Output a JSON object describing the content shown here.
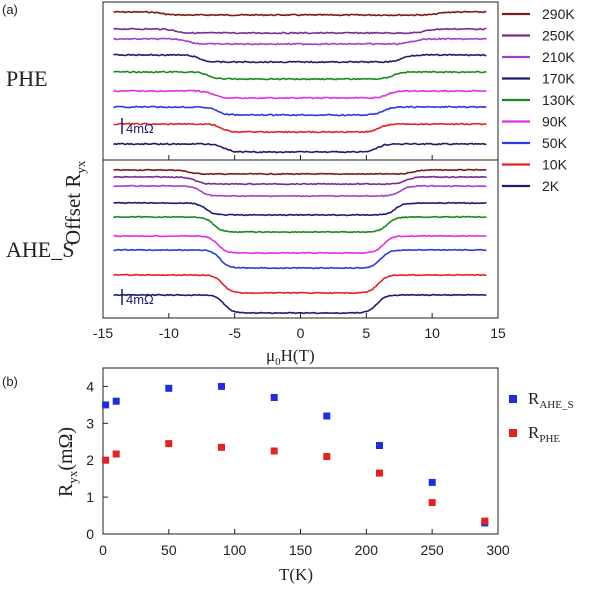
{
  "panel_labels": {
    "a": "(a)",
    "b": "(b)"
  },
  "chart_data": [
    {
      "type": "line",
      "panel": "(a)",
      "xlabel": "μ0H(T)",
      "ylabel": "Offset Ryx",
      "xlim": [
        -15,
        15
      ],
      "xticks": [
        -15,
        -10,
        -5,
        0,
        5,
        10,
        15
      ],
      "sublabels": {
        "top": "PHE",
        "bottom": "AHE_S"
      },
      "scale_bar": "4mΩ",
      "legend": [
        {
          "name": "290K",
          "color": "#7b1a1a"
        },
        {
          "name": "250K",
          "color": "#7a2b90"
        },
        {
          "name": "210K",
          "color": "#a240d0"
        },
        {
          "name": "170K",
          "color": "#1c1c70"
        },
        {
          "name": "130K",
          "color": "#1a8a1a"
        },
        {
          "name": "90K",
          "color": "#e22fe2"
        },
        {
          "name": "50K",
          "color": "#2a3ae0"
        },
        {
          "name": "10K",
          "color": "#e52222"
        },
        {
          "name": "2K",
          "color": "#1c1c70"
        }
      ],
      "phe_transition_field_T": [
        10.5,
        9.5,
        8.5,
        7.7,
        7.0,
        6.6,
        6.3,
        6.0,
        5.8
      ],
      "ahe_transition_field_T": [
        8.5,
        8.0,
        7.6,
        7.2,
        6.6,
        6.3,
        6.1,
        5.9,
        5.8
      ]
    },
    {
      "type": "scatter",
      "panel": "(b)",
      "xlabel": "T(K)",
      "ylabel": "Ryx(mΩ)",
      "xlim": [
        0,
        300
      ],
      "ylim": [
        0,
        4.5
      ],
      "xticks": [
        0,
        50,
        100,
        150,
        200,
        250,
        300
      ],
      "yticks": [
        0,
        1,
        2,
        3,
        4
      ],
      "series": [
        {
          "name": "RAHE_S",
          "base": "R",
          "sub": "AHE_S",
          "color": "#1a2ee0",
          "x": [
            2,
            10,
            50,
            90,
            130,
            170,
            210,
            250,
            290
          ],
          "values": [
            3.5,
            3.6,
            3.95,
            4.0,
            3.7,
            3.2,
            2.4,
            1.4,
            0.3
          ]
        },
        {
          "name": "RPHE",
          "base": "R",
          "sub": "PHE",
          "color": "#e52222",
          "x": [
            2,
            10,
            50,
            90,
            130,
            170,
            210,
            250,
            290
          ],
          "values": [
            2.0,
            2.17,
            2.45,
            2.35,
            2.25,
            2.1,
            1.65,
            0.85,
            0.35
          ]
        }
      ],
      "legend_placement": "right"
    }
  ]
}
